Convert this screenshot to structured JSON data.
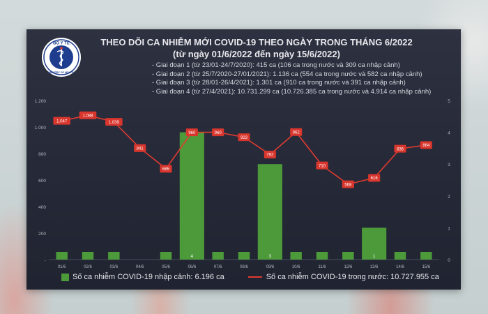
{
  "logo": {
    "top_text": "BỘ Y TẾ",
    "bottom_text": "MINISTRY OF HEALTH",
    "icon": "caduceus-icon"
  },
  "title": {
    "line1": "THEO DÕI CA NHIỄM MỚI COVID-19 THEO NGÀY TRONG THÁNG 6/2022",
    "line2": "(từ ngày 01/6/2022 đến ngày 15/6/2022)"
  },
  "phases": [
    "- Giai đoạn 1 (từ 23/01-24/7/2020): 415 ca (106 ca trong nước và 309 ca nhập cảnh)",
    "- Giai đoạn 2 (từ 25/7/2020-27/01/2021): 1.136 ca (554 ca trong nước và 582 ca nhập cảnh)",
    "- Giai đoạn 3 (từ 28/01-26/4/2021): 1.301 ca (910 ca trong nước và 391 ca nhập cảnh)",
    "- Giai đoạn 4 (từ 27/4/2021): 10.731.299 ca (10.726.385 ca trong nước và 4.914 ca nhập cảnh)"
  ],
  "legend": {
    "bar_label": "Số ca nhiễm COVID-19 nhập cảnh: 6.196 ca",
    "line_label": "Số ca nhiễm COVID-19 trong nước: 10.727.955 ca"
  },
  "colors": {
    "bar": "#4d9a3a",
    "line": "#e03a30",
    "label_bg": "#d9362e",
    "axis_text": "#b4b7c0"
  },
  "chart_data": {
    "type": "bar+line",
    "categories": [
      "01/6",
      "02/6",
      "03/6",
      "04/6",
      "05/6",
      "06/6",
      "07/6",
      "08/6",
      "09/6",
      "10/6",
      "11/6",
      "12/6",
      "13/6",
      "14/6",
      "15/6"
    ],
    "series": [
      {
        "name": "Số ca nhiễm COVID-19 nhập cảnh: 6.196 ca",
        "type": "bar",
        "axis": "right",
        "values": [
          0,
          0,
          0,
          null,
          0,
          4,
          0,
          0,
          3,
          0,
          0,
          0,
          1,
          0,
          0
        ]
      },
      {
        "name": "Số ca nhiễm COVID-19 trong nước: 10.727.955 ca",
        "type": "line",
        "axis": "left",
        "values": [
          1047,
          1088,
          1039,
          841,
          685,
          960,
          960,
          923,
          792,
          962,
          710,
          568,
          616,
          836,
          864
        ],
        "labels": [
          "1.047",
          "1.088",
          "1.039",
          "841",
          "685",
          "960",
          "960",
          "923",
          "792",
          "962",
          "710",
          "568",
          "616",
          "836",
          "864"
        ]
      }
    ],
    "bar_labels": [
      "",
      "",
      "",
      "",
      "",
      "4",
      "",
      "",
      "3",
      "",
      "",
      "",
      "1",
      "",
      ""
    ],
    "left_ylim": [
      0,
      1200
    ],
    "left_ticks": [
      0,
      200,
      400,
      600,
      800,
      1000,
      1200
    ],
    "left_tick_labels": [
      "-",
      "200",
      "400",
      "600",
      "800",
      "1.000",
      "1.200"
    ],
    "right_ylim": [
      0,
      5
    ],
    "right_ticks": [
      0,
      1,
      2,
      3,
      4,
      5
    ],
    "right_tick_labels": [
      "0",
      "1",
      "2",
      "3",
      "4",
      "5"
    ],
    "grid": false,
    "legend_position": "bottom"
  }
}
